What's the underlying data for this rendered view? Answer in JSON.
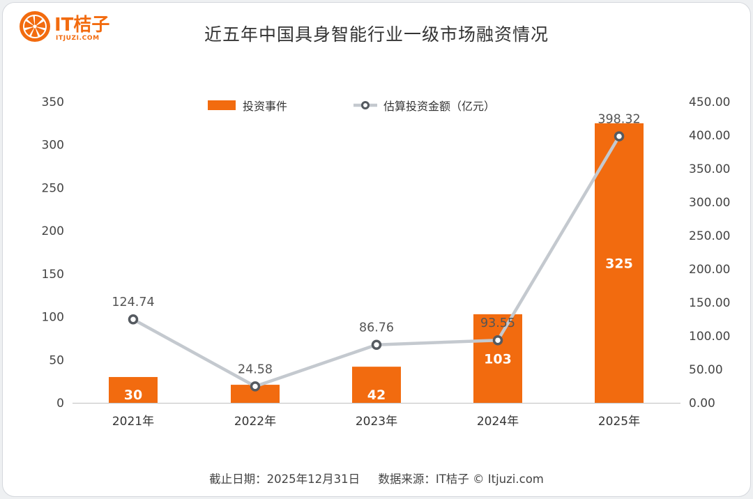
{
  "brand": {
    "name": "IT桔子",
    "site": "ITJUZI.COM"
  },
  "title": "近五年中国具身智能行业一级市场融资情况",
  "footer": "截止日期：2025年12月31日     数据来源：IT桔子 © Itjuzi.com",
  "colors": {
    "bar": "#f26b0f",
    "line": "#c4c9cf",
    "marker_fill": "#ffffff",
    "marker_stroke": "#555a60"
  },
  "chart_data": {
    "type": "bar",
    "categories": [
      "2021年",
      "2022年",
      "2023年",
      "2024年",
      "2025年"
    ],
    "series": [
      {
        "name": "投资事件",
        "type": "bar",
        "axis": "left",
        "values": [
          30,
          21,
          42,
          103,
          325
        ],
        "labels": [
          "30",
          "",
          "42",
          "103",
          "325"
        ]
      },
      {
        "name": "估算投资金额（亿元）",
        "type": "line",
        "axis": "right",
        "values": [
          124.74,
          24.58,
          86.76,
          93.55,
          398.32
        ],
        "labels": [
          "124.74",
          "24.58",
          "86.76",
          "93.55",
          "398.32"
        ]
      }
    ],
    "y_left": {
      "min": 0,
      "max": 350,
      "ticks": [
        "0",
        "50",
        "100",
        "150",
        "200",
        "250",
        "300",
        "350"
      ]
    },
    "y_right": {
      "min": 0,
      "max": 450,
      "ticks": [
        "0.00",
        "50.00",
        "100.00",
        "150.00",
        "200.00",
        "250.00",
        "300.00",
        "350.00",
        "400.00",
        "450.00"
      ]
    },
    "legend_position": "top-center",
    "grid": false
  }
}
